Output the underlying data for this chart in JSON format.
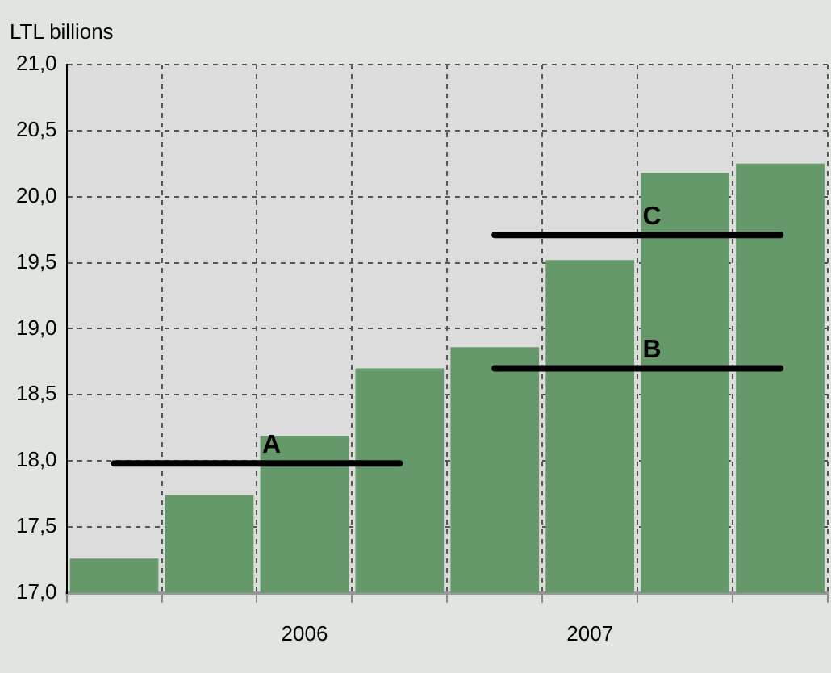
{
  "chart_data": {
    "type": "bar",
    "ylabel": "LTL billions",
    "categories": [
      null,
      null,
      "2006",
      null,
      null,
      "2007",
      null,
      null
    ],
    "series": [
      {
        "color": "#66996a",
        "values": [
          17.26,
          17.74,
          18.19,
          18.7,
          18.86,
          19.52,
          20.18,
          20.25
        ]
      },
      {
        "type": "line",
        "name": "A",
        "color": "#000000",
        "values": [
          17.98,
          17.98,
          17.98,
          17.98,
          null,
          null,
          null,
          null
        ]
      },
      {
        "type": "line",
        "name": "B",
        "color": "#000000",
        "values": [
          null,
          null,
          null,
          null,
          18.7,
          18.7,
          18.7,
          18.7
        ]
      },
      {
        "type": "line",
        "name": "C",
        "color": "#000000",
        "values": [
          null,
          null,
          null,
          null,
          19.71,
          19.71,
          19.71,
          19.71
        ]
      }
    ],
    "ylim": [
      17,
      21
    ],
    "yticks": [
      {
        "value": 17,
        "label": "17,0"
      },
      {
        "value": 17.5,
        "label": "17,5"
      },
      {
        "value": 18,
        "label": "18,0"
      },
      {
        "value": 18.5,
        "label": "18,5"
      },
      {
        "value": 19,
        "label": "19,0"
      },
      {
        "value": 19.5,
        "label": "19,5"
      },
      {
        "value": 20,
        "label": "20,0"
      },
      {
        "value": 20.5,
        "label": "20,5"
      },
      {
        "value": 21,
        "label": "21,0"
      }
    ],
    "grid": true,
    "legend": false,
    "marker": "none",
    "line_style": "solid"
  }
}
